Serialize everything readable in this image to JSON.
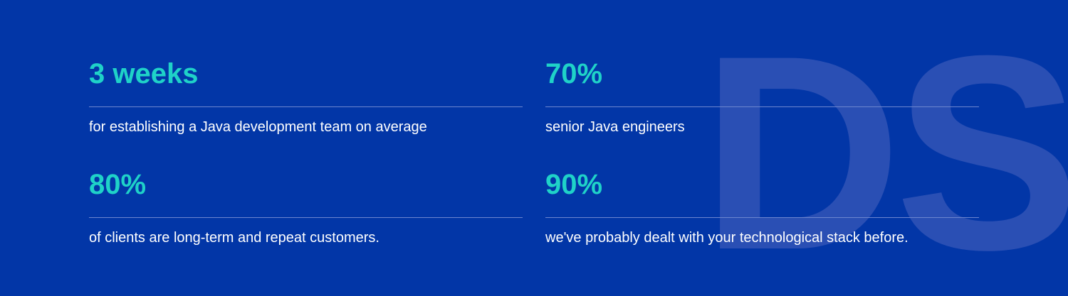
{
  "watermark": "DS",
  "stats": [
    {
      "value": "3 weeks",
      "description": "for establishing a Java development team on average"
    },
    {
      "value": "70%",
      "description": "senior Java engineers"
    },
    {
      "value": "80%",
      "description": "of clients are long-term and repeat customers."
    },
    {
      "value": "90%",
      "description": "we've probably dealt with your technological stack before."
    }
  ]
}
